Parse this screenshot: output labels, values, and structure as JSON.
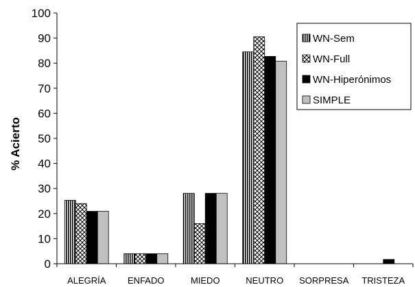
{
  "chart_data": {
    "type": "bar",
    "title": "",
    "xlabel": "",
    "ylabel": "% Acierto",
    "ylim": [
      0,
      100
    ],
    "yticks": [
      0,
      10,
      20,
      30,
      40,
      50,
      60,
      70,
      80,
      90,
      100
    ],
    "grid": false,
    "legend_position": "top-right",
    "categories": [
      "ALEGRÍA",
      "ENFADO",
      "MIEDO",
      "NEUTRO",
      "SORPRESA",
      "TRISTEZA"
    ],
    "series": [
      {
        "name": "WN-Sem",
        "values": [
          25.3,
          4,
          28.1,
          84.5,
          0,
          0
        ],
        "pattern": "vertical-stripes"
      },
      {
        "name": "WN-Full",
        "values": [
          24,
          4,
          16,
          90.5,
          0,
          0
        ],
        "pattern": "crosshatch"
      },
      {
        "name": "WN-Hiperónimos",
        "values": [
          20.9,
          4,
          28.1,
          82.7,
          0,
          1.7
        ],
        "pattern": "solid-black"
      },
      {
        "name": "SIMPLE",
        "values": [
          20.9,
          4,
          28.1,
          80.8,
          0,
          0
        ],
        "pattern": "solid-gray"
      }
    ]
  }
}
